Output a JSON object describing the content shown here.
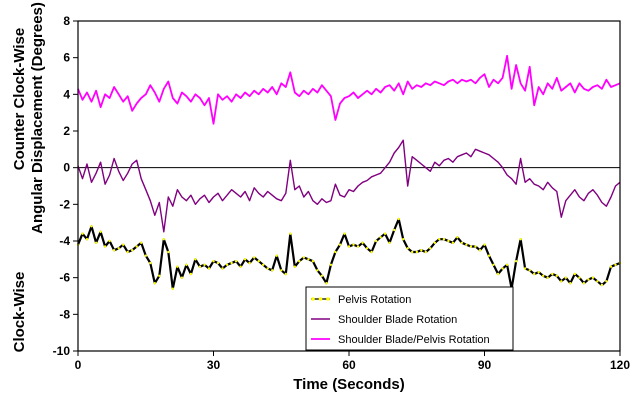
{
  "chart_data": {
    "type": "line",
    "title": "",
    "xlabel": "Time (Seconds)",
    "ylabel_lines": [
      "Counter Clock-Wise",
      "Angular Displacement (Degrees)",
      "Clock-Wise"
    ],
    "xlim": [
      0,
      120
    ],
    "ylim": [
      -10,
      8
    ],
    "xticks": [
      0,
      30,
      60,
      90,
      120
    ],
    "yticks": [
      -10,
      -8,
      -6,
      -4,
      -2,
      0,
      2,
      4,
      6,
      8
    ],
    "grid": false,
    "zero_line": true,
    "legend_position": "bottom-right",
    "series": [
      {
        "name": "Pelvis Rotation",
        "color": "#000000",
        "marker_color": "#ffff00",
        "x": [
          0,
          1,
          2,
          3,
          4,
          5,
          6,
          7,
          8,
          9,
          10,
          11,
          12,
          13,
          14,
          15,
          16,
          17,
          18,
          19,
          20,
          21,
          22,
          23,
          24,
          25,
          26,
          27,
          28,
          29,
          30,
          31,
          32,
          33,
          34,
          35,
          36,
          37,
          38,
          39,
          40,
          41,
          42,
          43,
          44,
          45,
          46,
          47,
          48,
          49,
          50,
          51,
          52,
          53,
          54,
          55,
          56,
          57,
          58,
          59,
          60,
          61,
          62,
          63,
          64,
          65,
          66,
          67,
          68,
          69,
          70,
          71,
          72,
          73,
          74,
          75,
          76,
          77,
          78,
          79,
          80,
          81,
          82,
          83,
          84,
          85,
          86,
          87,
          88,
          89,
          90,
          91,
          92,
          93,
          94,
          95,
          96,
          97,
          98,
          99,
          100,
          101,
          102,
          103,
          104,
          105,
          106,
          107,
          108,
          109,
          110,
          111,
          112,
          113,
          114,
          115,
          116,
          117,
          118,
          119,
          120
        ],
        "values": [
          -4.2,
          -3.6,
          -3.9,
          -3.2,
          -4.1,
          -3.5,
          -4.3,
          -4.0,
          -4.5,
          -4.4,
          -4.2,
          -4.6,
          -4.5,
          -4.3,
          -4.1,
          -4.8,
          -5.2,
          -6.3,
          -5.9,
          -3.9,
          -4.6,
          -6.6,
          -5.4,
          -6.0,
          -5.3,
          -5.8,
          -5.0,
          -5.4,
          -5.3,
          -5.5,
          -5.1,
          -5.2,
          -5.5,
          -5.3,
          -5.2,
          -5.1,
          -5.4,
          -5.0,
          -5.2,
          -4.9,
          -5.1,
          -5.3,
          -5.5,
          -5.6,
          -4.8,
          -5.6,
          -5.8,
          -3.6,
          -5.4,
          -5.1,
          -4.9,
          -5.0,
          -5.1,
          -5.6,
          -5.9,
          -6.3,
          -5.3,
          -4.6,
          -4.2,
          -3.6,
          -4.3,
          -4.2,
          -4.3,
          -4.1,
          -4.4,
          -4.6,
          -4.0,
          -3.8,
          -3.6,
          -4.1,
          -3.4,
          -2.8,
          -3.9,
          -4.4,
          -4.6,
          -4.6,
          -4.5,
          -4.6,
          -4.4,
          -4.1,
          -3.9,
          -3.9,
          -4.0,
          -4.1,
          -3.8,
          -4.1,
          -4.2,
          -4.3,
          -4.3,
          -4.5,
          -4.2,
          -4.8,
          -5.3,
          -5.8,
          -5.5,
          -5.3,
          -6.6,
          -5.1,
          -3.9,
          -5.5,
          -5.6,
          -5.8,
          -5.7,
          -5.9,
          -6.0,
          -5.8,
          -5.9,
          -6.2,
          -6.0,
          -6.3,
          -5.8,
          -6.0,
          -6.3,
          -6.1,
          -6.0,
          -6.2,
          -6.4,
          -6.2,
          -5.4,
          -5.3,
          -5.2
        ]
      },
      {
        "name": "Shoulder Blade Rotation",
        "color": "#800080",
        "x": [
          0,
          1,
          2,
          3,
          4,
          5,
          6,
          7,
          8,
          9,
          10,
          11,
          12,
          13,
          14,
          15,
          16,
          17,
          18,
          19,
          20,
          21,
          22,
          23,
          24,
          25,
          26,
          27,
          28,
          29,
          30,
          31,
          32,
          33,
          34,
          35,
          36,
          37,
          38,
          39,
          40,
          41,
          42,
          43,
          44,
          45,
          46,
          47,
          48,
          49,
          50,
          51,
          52,
          53,
          54,
          55,
          56,
          57,
          58,
          59,
          60,
          61,
          62,
          63,
          64,
          65,
          66,
          67,
          68,
          69,
          70,
          71,
          72,
          73,
          74,
          75,
          76,
          77,
          78,
          79,
          80,
          81,
          82,
          83,
          84,
          85,
          86,
          87,
          88,
          89,
          90,
          91,
          92,
          93,
          94,
          95,
          96,
          97,
          98,
          99,
          100,
          101,
          102,
          103,
          104,
          105,
          106,
          107,
          108,
          109,
          110,
          111,
          112,
          113,
          114,
          115,
          116,
          117,
          118,
          119,
          120
        ],
        "values": [
          0.1,
          -0.6,
          0.2,
          -0.8,
          -0.3,
          0.3,
          -0.9,
          -0.4,
          0.5,
          -0.2,
          -0.7,
          -0.3,
          0.2,
          0.4,
          -0.6,
          -1.2,
          -1.8,
          -2.6,
          -1.9,
          -3.5,
          -1.6,
          -2.1,
          -1.2,
          -1.6,
          -1.8,
          -1.5,
          -2.0,
          -1.7,
          -1.5,
          -1.9,
          -1.6,
          -1.4,
          -1.8,
          -1.5,
          -1.2,
          -1.4,
          -1.6,
          -1.3,
          -1.8,
          -1.1,
          -1.4,
          -1.6,
          -1.3,
          -1.5,
          -1.7,
          -1.8,
          -1.4,
          0.4,
          -1.2,
          -1.0,
          -1.6,
          -1.3,
          -1.8,
          -2.0,
          -1.7,
          -1.9,
          -1.8,
          -0.9,
          -1.5,
          -1.6,
          -1.2,
          -1.3,
          -1.0,
          -0.8,
          -0.7,
          -0.5,
          -0.4,
          -0.3,
          0.0,
          0.3,
          0.8,
          1.1,
          1.5,
          -1.0,
          0.6,
          0.4,
          0.2,
          0.0,
          -0.2,
          0.3,
          0.1,
          0.4,
          0.5,
          0.3,
          0.6,
          0.7,
          0.8,
          0.6,
          1.0,
          0.9,
          0.8,
          0.7,
          0.5,
          0.3,
          0.0,
          -0.4,
          -0.6,
          -0.9,
          0.5,
          -0.8,
          -0.6,
          -0.9,
          -1.0,
          -1.2,
          -0.8,
          -1.1,
          -1.3,
          -2.7,
          -1.8,
          -1.5,
          -1.2,
          -1.6,
          -1.8,
          -1.4,
          -1.2,
          -1.5,
          -1.9,
          -2.1,
          -1.6,
          -1.0,
          -0.8
        ]
      },
      {
        "name": "Shoulder Blade/Pelvis Rotation",
        "color": "#ff00ff",
        "x": [
          0,
          1,
          2,
          3,
          4,
          5,
          6,
          7,
          8,
          9,
          10,
          11,
          12,
          13,
          14,
          15,
          16,
          17,
          18,
          19,
          20,
          21,
          22,
          23,
          24,
          25,
          26,
          27,
          28,
          29,
          30,
          31,
          32,
          33,
          34,
          35,
          36,
          37,
          38,
          39,
          40,
          41,
          42,
          43,
          44,
          45,
          46,
          47,
          48,
          49,
          50,
          51,
          52,
          53,
          54,
          55,
          56,
          57,
          58,
          59,
          60,
          61,
          62,
          63,
          64,
          65,
          66,
          67,
          68,
          69,
          70,
          71,
          72,
          73,
          74,
          75,
          76,
          77,
          78,
          79,
          80,
          81,
          82,
          83,
          84,
          85,
          86,
          87,
          88,
          89,
          90,
          91,
          92,
          93,
          94,
          95,
          96,
          97,
          98,
          99,
          100,
          101,
          102,
          103,
          104,
          105,
          106,
          107,
          108,
          109,
          110,
          111,
          112,
          113,
          114,
          115,
          116,
          117,
          118,
          119,
          120
        ],
        "values": [
          4.3,
          3.7,
          4.1,
          3.6,
          4.2,
          3.3,
          4.0,
          3.8,
          4.4,
          4.0,
          3.6,
          3.9,
          3.1,
          3.5,
          3.8,
          4.0,
          4.5,
          4.1,
          3.6,
          4.3,
          4.7,
          3.8,
          3.5,
          4.1,
          3.9,
          3.6,
          4.0,
          3.8,
          3.4,
          3.8,
          2.4,
          4.0,
          3.7,
          3.9,
          3.6,
          4.0,
          3.8,
          4.1,
          3.9,
          4.2,
          4.0,
          4.3,
          4.1,
          4.4,
          4.0,
          4.6,
          4.4,
          5.2,
          4.1,
          3.9,
          4.2,
          4.0,
          4.3,
          4.1,
          4.5,
          4.2,
          3.9,
          2.6,
          3.5,
          3.8,
          3.9,
          4.1,
          3.8,
          4.0,
          4.2,
          4.0,
          4.3,
          4.1,
          4.4,
          4.5,
          4.2,
          4.6,
          4.0,
          4.7,
          4.3,
          4.5,
          4.4,
          4.6,
          4.5,
          4.7,
          4.6,
          4.5,
          4.7,
          4.8,
          4.6,
          4.8,
          4.7,
          4.8,
          4.6,
          4.9,
          5.1,
          4.4,
          4.8,
          4.6,
          4.9,
          6.1,
          4.3,
          5.6,
          4.6,
          4.2,
          5.5,
          3.4,
          4.4,
          4.0,
          4.6,
          4.3,
          4.9,
          4.2,
          4.4,
          4.6,
          4.1,
          4.6,
          4.3,
          4.2,
          4.4,
          4.5,
          4.3,
          4.8,
          4.4,
          4.5,
          4.6
        ]
      }
    ]
  }
}
